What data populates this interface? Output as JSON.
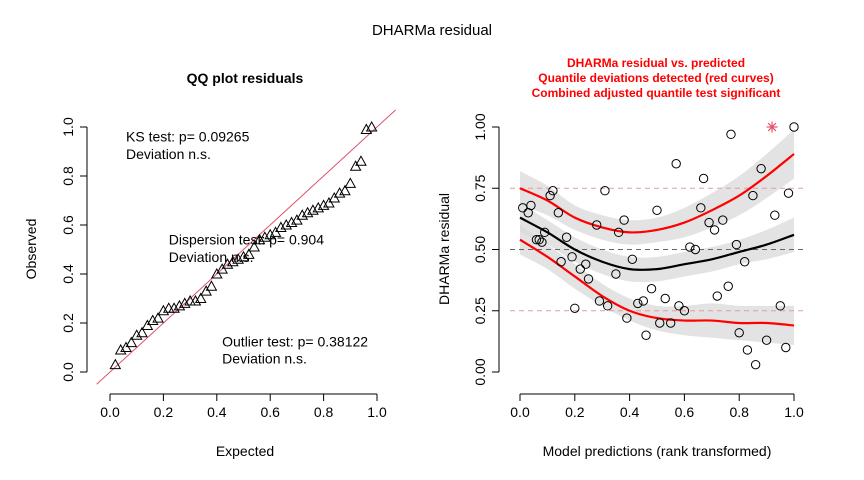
{
  "page_title": "DHARMa residual",
  "colors": {
    "line_red": "#DF536B",
    "curve_red": "#FF0000",
    "band_gray": "#D9D9D9",
    "outlier_red": "#DF536B",
    "text": "#000000"
  },
  "chart_data": [
    {
      "type": "scatter",
      "title": "QQ plot residuals",
      "xlabel": "Expected",
      "ylabel": "Observed",
      "xlim": [
        0,
        1
      ],
      "ylim": [
        0,
        1
      ],
      "xticks": [
        "0.0",
        "0.2",
        "0.4",
        "0.6",
        "0.8",
        "1.0"
      ],
      "yticks": [
        "0.0",
        "0.2",
        "0.4",
        "0.6",
        "0.8",
        "1.0"
      ],
      "marker": "triangle",
      "reference_line": {
        "from": [
          0,
          0
        ],
        "to": [
          1,
          1
        ],
        "color": "#DF536B"
      },
      "annotations": [
        {
          "text": "KS test: p= 0.09265",
          "x": 0.06,
          "y": 0.94
        },
        {
          "text": "Deviation  n.s.",
          "x": 0.06,
          "y": 0.87
        },
        {
          "text": "Dispersion test: p= 0.904",
          "x": 0.22,
          "y": 0.52
        },
        {
          "text": "Deviation  n.s.",
          "x": 0.22,
          "y": 0.45
        },
        {
          "text": "Outlier test: p= 0.38122",
          "x": 0.42,
          "y": 0.105
        },
        {
          "text": "Deviation  n.s.",
          "x": 0.42,
          "y": 0.035
        }
      ],
      "points": [
        [
          0.02,
          0.03
        ],
        [
          0.04,
          0.09
        ],
        [
          0.06,
          0.1
        ],
        [
          0.08,
          0.12
        ],
        [
          0.1,
          0.15
        ],
        [
          0.12,
          0.16
        ],
        [
          0.14,
          0.19
        ],
        [
          0.16,
          0.21
        ],
        [
          0.18,
          0.22
        ],
        [
          0.2,
          0.25
        ],
        [
          0.22,
          0.26
        ],
        [
          0.24,
          0.26
        ],
        [
          0.26,
          0.27
        ],
        [
          0.28,
          0.28
        ],
        [
          0.3,
          0.29
        ],
        [
          0.32,
          0.29
        ],
        [
          0.34,
          0.3
        ],
        [
          0.36,
          0.33
        ],
        [
          0.38,
          0.35
        ],
        [
          0.4,
          0.4
        ],
        [
          0.42,
          0.42
        ],
        [
          0.44,
          0.44
        ],
        [
          0.46,
          0.45
        ],
        [
          0.48,
          0.46
        ],
        [
          0.5,
          0.47
        ],
        [
          0.52,
          0.48
        ],
        [
          0.54,
          0.51
        ],
        [
          0.56,
          0.54
        ],
        [
          0.58,
          0.55
        ],
        [
          0.6,
          0.56
        ],
        [
          0.62,
          0.57
        ],
        [
          0.64,
          0.59
        ],
        [
          0.66,
          0.6
        ],
        [
          0.68,
          0.61
        ],
        [
          0.7,
          0.62
        ],
        [
          0.72,
          0.64
        ],
        [
          0.74,
          0.65
        ],
        [
          0.76,
          0.66
        ],
        [
          0.78,
          0.67
        ],
        [
          0.8,
          0.68
        ],
        [
          0.82,
          0.69
        ],
        [
          0.84,
          0.71
        ],
        [
          0.86,
          0.73
        ],
        [
          0.88,
          0.74
        ],
        [
          0.9,
          0.77
        ],
        [
          0.92,
          0.84
        ],
        [
          0.94,
          0.86
        ],
        [
          0.96,
          0.99
        ],
        [
          0.98,
          1.0
        ]
      ]
    },
    {
      "type": "scatter",
      "title": [
        "DHARMa residual vs. predicted",
        "Quantile deviations detected (red curves)",
        "Combined adjusted quantile test significant"
      ],
      "xlabel": "Model predictions (rank transformed)",
      "ylabel": "DHARMa residual",
      "xlim": [
        0,
        1
      ],
      "ylim": [
        0,
        1
      ],
      "xticks": [
        "0.0",
        "0.2",
        "0.4",
        "0.6",
        "0.8",
        "1.0"
      ],
      "yticks": [
        "0.00",
        "0.25",
        "0.50",
        "0.75",
        "1.00"
      ],
      "marker": "circle",
      "reference_lines": [
        0.25,
        0.5,
        0.75
      ],
      "points": [
        [
          0.01,
          0.67
        ],
        [
          0.03,
          0.65
        ],
        [
          0.04,
          0.68
        ],
        [
          0.06,
          0.54
        ],
        [
          0.07,
          0.54
        ],
        [
          0.08,
          0.53
        ],
        [
          0.09,
          0.57
        ],
        [
          0.11,
          0.72
        ],
        [
          0.12,
          0.74
        ],
        [
          0.14,
          0.65
        ],
        [
          0.15,
          0.45
        ],
        [
          0.17,
          0.55
        ],
        [
          0.19,
          0.47
        ],
        [
          0.2,
          0.26
        ],
        [
          0.22,
          0.42
        ],
        [
          0.24,
          0.44
        ],
        [
          0.25,
          0.38
        ],
        [
          0.28,
          0.6
        ],
        [
          0.29,
          0.29
        ],
        [
          0.31,
          0.74
        ],
        [
          0.32,
          0.27
        ],
        [
          0.35,
          0.4
        ],
        [
          0.36,
          0.57
        ],
        [
          0.38,
          0.62
        ],
        [
          0.39,
          0.22
        ],
        [
          0.41,
          0.46
        ],
        [
          0.43,
          0.28
        ],
        [
          0.45,
          0.29
        ],
        [
          0.46,
          0.15
        ],
        [
          0.48,
          0.34
        ],
        [
          0.5,
          0.66
        ],
        [
          0.51,
          0.2
        ],
        [
          0.53,
          0.3
        ],
        [
          0.55,
          0.2
        ],
        [
          0.57,
          0.85
        ],
        [
          0.58,
          0.27
        ],
        [
          0.6,
          0.25
        ],
        [
          0.62,
          0.51
        ],
        [
          0.64,
          0.5
        ],
        [
          0.66,
          0.67
        ],
        [
          0.67,
          0.79
        ],
        [
          0.69,
          0.61
        ],
        [
          0.71,
          0.58
        ],
        [
          0.72,
          0.31
        ],
        [
          0.74,
          0.62
        ],
        [
          0.76,
          0.35
        ],
        [
          0.77,
          0.97
        ],
        [
          0.79,
          0.52
        ],
        [
          0.8,
          0.16
        ],
        [
          0.82,
          0.45
        ],
        [
          0.83,
          0.09
        ],
        [
          0.85,
          0.72
        ],
        [
          0.86,
          0.03
        ],
        [
          0.88,
          0.83
        ],
        [
          0.9,
          0.13
        ],
        [
          0.93,
          0.64
        ],
        [
          0.95,
          0.27
        ],
        [
          0.97,
          0.1
        ],
        [
          0.98,
          0.73
        ],
        [
          1.0,
          1.0
        ]
      ],
      "outliers": [
        [
          0.92,
          1.0
        ]
      ],
      "quantile_curves": {
        "q25": {
          "x": [
            0.0,
            0.1,
            0.2,
            0.3,
            0.4,
            0.5,
            0.6,
            0.7,
            0.8,
            0.9,
            1.0
          ],
          "y": [
            0.54,
            0.47,
            0.39,
            0.31,
            0.25,
            0.22,
            0.21,
            0.21,
            0.2,
            0.2,
            0.19
          ],
          "color": "#FF0000"
        },
        "q50": {
          "x": [
            0.0,
            0.1,
            0.2,
            0.3,
            0.4,
            0.5,
            0.6,
            0.7,
            0.8,
            0.9,
            1.0
          ],
          "y": [
            0.63,
            0.57,
            0.5,
            0.45,
            0.42,
            0.42,
            0.44,
            0.46,
            0.49,
            0.52,
            0.56
          ],
          "color": "#000000"
        },
        "q75": {
          "x": [
            0.0,
            0.1,
            0.2,
            0.3,
            0.4,
            0.5,
            0.6,
            0.7,
            0.8,
            0.9,
            1.0
          ],
          "y": [
            0.75,
            0.7,
            0.63,
            0.59,
            0.57,
            0.58,
            0.61,
            0.66,
            0.72,
            0.8,
            0.89
          ],
          "color": "#FF0000"
        }
      },
      "bands": {
        "q25": {
          "lo": [
            0.48,
            0.42,
            0.34,
            0.27,
            0.21,
            0.17,
            0.15,
            0.14,
            0.13,
            0.12,
            0.11
          ],
          "hi": [
            0.6,
            0.52,
            0.44,
            0.36,
            0.3,
            0.27,
            0.27,
            0.28,
            0.27,
            0.27,
            0.27
          ]
        },
        "q50": {
          "lo": [
            0.57,
            0.52,
            0.45,
            0.4,
            0.37,
            0.37,
            0.39,
            0.41,
            0.44,
            0.46,
            0.49
          ],
          "hi": [
            0.69,
            0.62,
            0.55,
            0.5,
            0.47,
            0.47,
            0.49,
            0.51,
            0.54,
            0.58,
            0.63
          ]
        },
        "q75": {
          "lo": [
            0.68,
            0.64,
            0.58,
            0.54,
            0.52,
            0.53,
            0.55,
            0.59,
            0.64,
            0.71,
            0.79
          ],
          "hi": [
            0.82,
            0.76,
            0.68,
            0.64,
            0.62,
            0.63,
            0.67,
            0.73,
            0.8,
            0.89,
            0.99
          ]
        }
      }
    }
  ]
}
